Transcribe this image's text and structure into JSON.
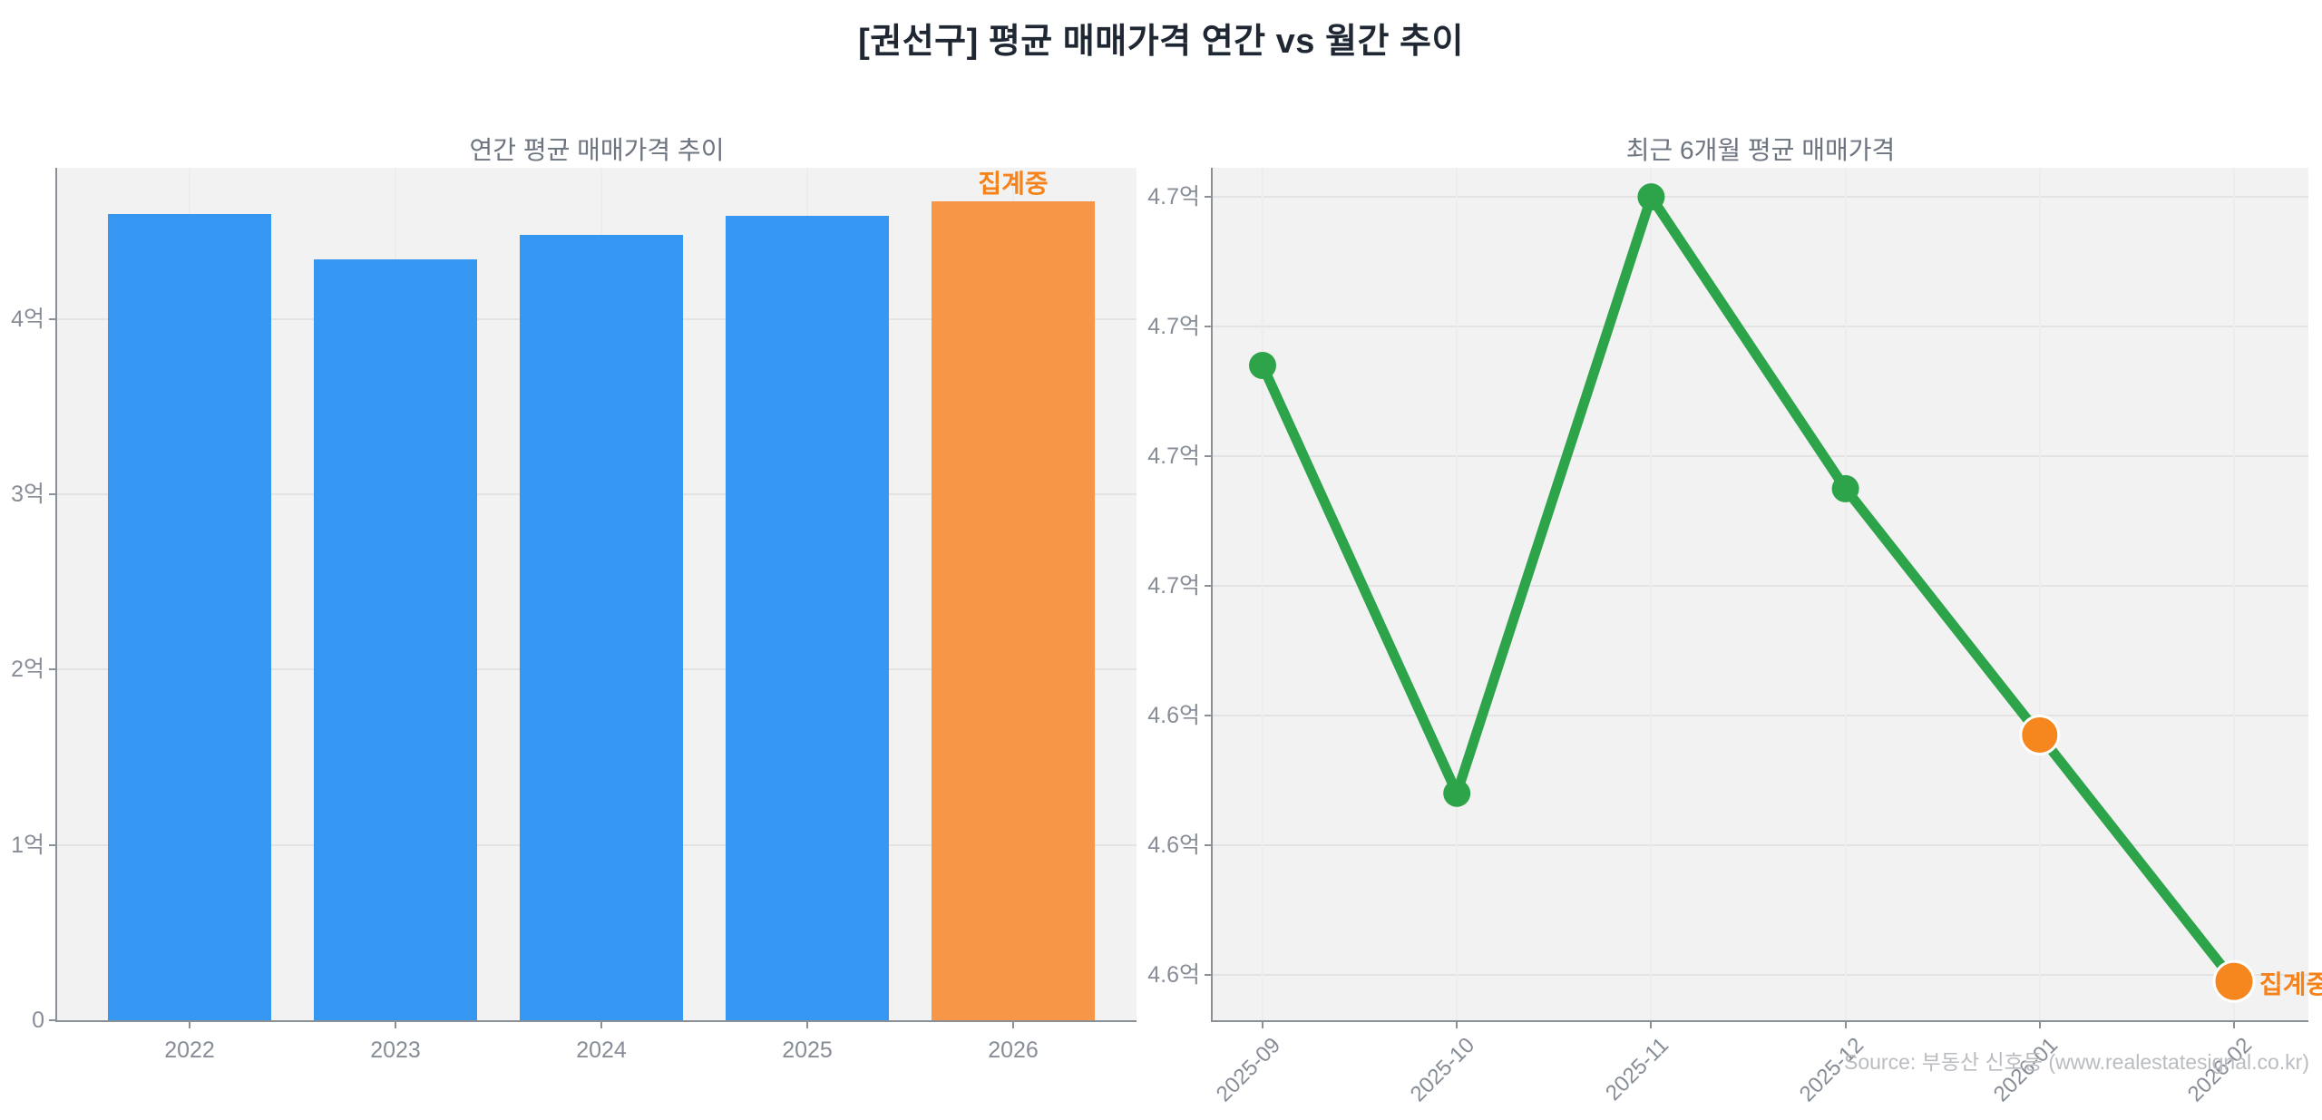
{
  "page": {
    "title": "[권선구] 평균 매매가격 연간 vs 월간 추이",
    "source": "Source: 부동산 신호등 (www.realestatesignal.co.kr)"
  },
  "colors": {
    "bar_blue": "#3597f2",
    "bar_orange": "#f79646",
    "line_green": "#2ea44a",
    "dot_green": "#2ea44a",
    "dot_orange": "#f5871e",
    "annotation_orange": "#f5821a",
    "plot_background": "#f2f2f2",
    "gridline": "#e3e3e3",
    "axis_spine": "#8b8f96",
    "tick_label": "#878d96",
    "panel_title": "#6c7480",
    "main_title": "#1f2733",
    "source_text": "#b9bcc0"
  },
  "chart_data": [
    {
      "type": "bar",
      "title": "연간 평균 매매가격 추이",
      "unit": "억",
      "categories": [
        "2022",
        "2023",
        "2024",
        "2025",
        "2026"
      ],
      "values": [
        4.6,
        4.34,
        4.48,
        4.59,
        4.67
      ],
      "bar_colors": [
        "bar_blue",
        "bar_blue",
        "bar_blue",
        "bar_blue",
        "bar_orange"
      ],
      "y_ticks": [
        {
          "value": 0,
          "label": "0"
        },
        {
          "value": 1,
          "label": "1억"
        },
        {
          "value": 2,
          "label": "2억"
        },
        {
          "value": 3,
          "label": "3억"
        },
        {
          "value": 4,
          "label": "4억"
        }
      ],
      "ylim": [
        0,
        4.86
      ],
      "grid": true,
      "annotation": {
        "text": "집계중",
        "category": "2026"
      }
    },
    {
      "type": "line",
      "title": "최근 6개월 평균 매매가격",
      "unit": "억",
      "categories": [
        "2025-09",
        "2025-10",
        "2025-11",
        "2025-12",
        "2026-01",
        "2026-02"
      ],
      "values": [
        4.694,
        4.628,
        4.72,
        4.675,
        4.637,
        4.599
      ],
      "point_colors": [
        "dot_green",
        "dot_green",
        "dot_green",
        "dot_green",
        "dot_orange",
        "dot_orange"
      ],
      "y_ticks": [
        {
          "value": 4.72,
          "label": "4.7억"
        },
        {
          "value": 4.7,
          "label": "4.7억"
        },
        {
          "value": 4.68,
          "label": "4.7억"
        },
        {
          "value": 4.66,
          "label": "4.7억"
        },
        {
          "value": 4.64,
          "label": "4.6억"
        },
        {
          "value": 4.62,
          "label": "4.6억"
        },
        {
          "value": 4.6,
          "label": "4.6억"
        }
      ],
      "ylim": [
        4.59,
        4.73
      ],
      "grid": true,
      "annotation": {
        "text": "집계중",
        "category": "2026-02"
      }
    }
  ]
}
